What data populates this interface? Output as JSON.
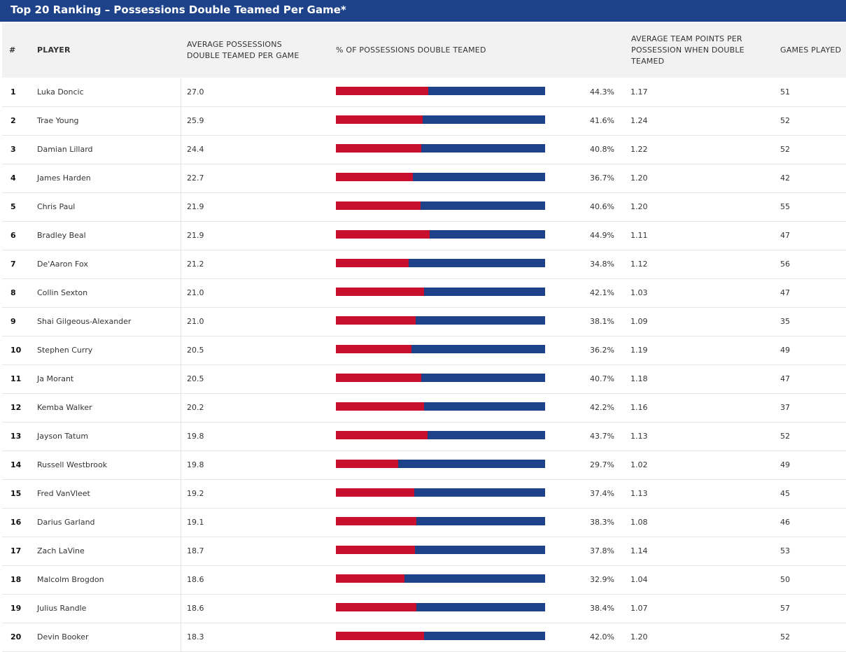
{
  "title": "Top 20 Ranking – Possessions Double Teamed Per Game*",
  "columns": {
    "rank": "#",
    "player": "PLAYER",
    "avg": "AVERAGE POSSESSIONS DOUBLE TEAMED PER GAME",
    "pct": "% OF POSSESSIONS DOUBLE TEAMED",
    "ppp": "AVERAGE TEAM POINTS PER POSSESSION WHEN DOUBLE TEAMED",
    "gp": "GAMES PLAYED"
  },
  "colors": {
    "header_bar": "#1d428a",
    "bar_double_teamed": "#c8102e",
    "bar_remainder": "#1d428a"
  },
  "chart_data": {
    "type": "table",
    "rows": [
      {
        "rank": "1",
        "player": "Luka Doncic",
        "avg": "27.0",
        "pct": 44.3,
        "pct_label": "44.3%",
        "ppp": "1.17",
        "gp": "51"
      },
      {
        "rank": "2",
        "player": "Trae Young",
        "avg": "25.9",
        "pct": 41.6,
        "pct_label": "41.6%",
        "ppp": "1.24",
        "gp": "52"
      },
      {
        "rank": "3",
        "player": "Damian Lillard",
        "avg": "24.4",
        "pct": 40.8,
        "pct_label": "40.8%",
        "ppp": "1.22",
        "gp": "52"
      },
      {
        "rank": "4",
        "player": "James Harden",
        "avg": "22.7",
        "pct": 36.7,
        "pct_label": "36.7%",
        "ppp": "1.20",
        "gp": "42"
      },
      {
        "rank": "5",
        "player": "Chris Paul",
        "avg": "21.9",
        "pct": 40.6,
        "pct_label": "40.6%",
        "ppp": "1.20",
        "gp": "55"
      },
      {
        "rank": "6",
        "player": "Bradley Beal",
        "avg": "21.9",
        "pct": 44.9,
        "pct_label": "44.9%",
        "ppp": "1.11",
        "gp": "47"
      },
      {
        "rank": "7",
        "player": "De'Aaron Fox",
        "avg": "21.2",
        "pct": 34.8,
        "pct_label": "34.8%",
        "ppp": "1.12",
        "gp": "56"
      },
      {
        "rank": "8",
        "player": "Collin Sexton",
        "avg": "21.0",
        "pct": 42.1,
        "pct_label": "42.1%",
        "ppp": "1.03",
        "gp": "47"
      },
      {
        "rank": "9",
        "player": "Shai Gilgeous-Alexander",
        "avg": "21.0",
        "pct": 38.1,
        "pct_label": "38.1%",
        "ppp": "1.09",
        "gp": "35"
      },
      {
        "rank": "10",
        "player": "Stephen Curry",
        "avg": "20.5",
        "pct": 36.2,
        "pct_label": "36.2%",
        "ppp": "1.19",
        "gp": "49"
      },
      {
        "rank": "11",
        "player": "Ja Morant",
        "avg": "20.5",
        "pct": 40.7,
        "pct_label": "40.7%",
        "ppp": "1.18",
        "gp": "47"
      },
      {
        "rank": "12",
        "player": "Kemba Walker",
        "avg": "20.2",
        "pct": 42.2,
        "pct_label": "42.2%",
        "ppp": "1.16",
        "gp": "37"
      },
      {
        "rank": "13",
        "player": "Jayson Tatum",
        "avg": "19.8",
        "pct": 43.7,
        "pct_label": "43.7%",
        "ppp": "1.13",
        "gp": "52"
      },
      {
        "rank": "14",
        "player": "Russell Westbrook",
        "avg": "19.8",
        "pct": 29.7,
        "pct_label": "29.7%",
        "ppp": "1.02",
        "gp": "49"
      },
      {
        "rank": "15",
        "player": "Fred VanVleet",
        "avg": "19.2",
        "pct": 37.4,
        "pct_label": "37.4%",
        "ppp": "1.13",
        "gp": "45"
      },
      {
        "rank": "16",
        "player": "Darius Garland",
        "avg": "19.1",
        "pct": 38.3,
        "pct_label": "38.3%",
        "ppp": "1.08",
        "gp": "46"
      },
      {
        "rank": "17",
        "player": "Zach LaVine",
        "avg": "18.7",
        "pct": 37.8,
        "pct_label": "37.8%",
        "ppp": "1.14",
        "gp": "53"
      },
      {
        "rank": "18",
        "player": "Malcolm Brogdon",
        "avg": "18.6",
        "pct": 32.9,
        "pct_label": "32.9%",
        "ppp": "1.04",
        "gp": "50"
      },
      {
        "rank": "19",
        "player": "Julius Randle",
        "avg": "18.6",
        "pct": 38.4,
        "pct_label": "38.4%",
        "ppp": "1.07",
        "gp": "57"
      },
      {
        "rank": "20",
        "player": "Devin Booker",
        "avg": "18.3",
        "pct": 42.0,
        "pct_label": "42.0%",
        "ppp": "1.20",
        "gp": "52"
      }
    ]
  }
}
